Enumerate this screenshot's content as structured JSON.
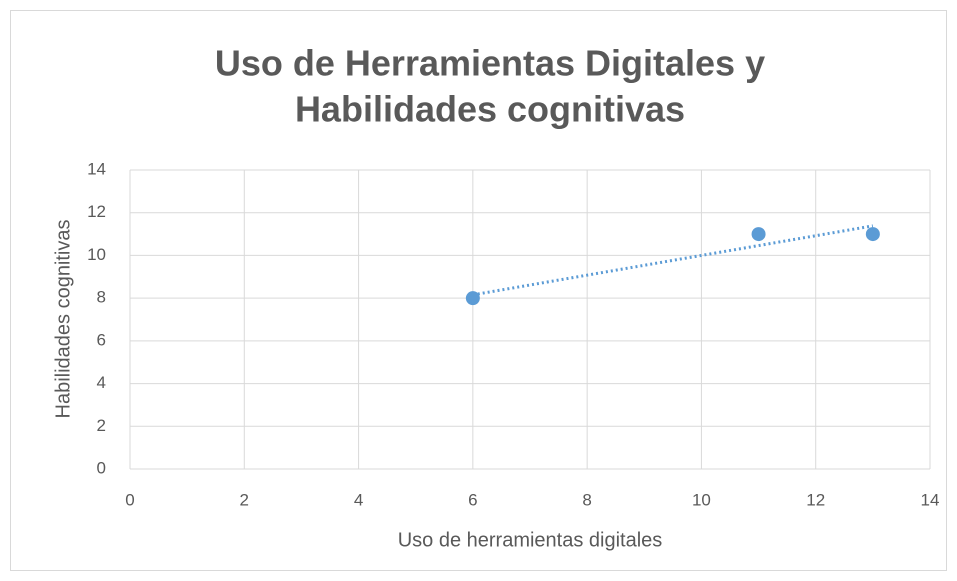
{
  "chart_data": {
    "type": "scatter",
    "title": [
      "Uso de Herramientas Digitales y",
      "Habilidades cognitivas"
    ],
    "x_label": "Uso de herramientas digitales",
    "y_label": "Habilidades cognitivas",
    "x": [
      6,
      11,
      13
    ],
    "values": [
      8,
      11,
      11
    ],
    "color": "#5b9bd5",
    "xlim": [
      0,
      14
    ],
    "xticks": [
      0,
      2,
      4,
      6,
      8,
      10,
      12,
      14
    ],
    "ylim": [
      0,
      14
    ],
    "yticks": [
      0,
      2,
      4,
      6,
      8,
      10,
      12,
      14
    ],
    "grid": true,
    "trendline": "linear"
  }
}
